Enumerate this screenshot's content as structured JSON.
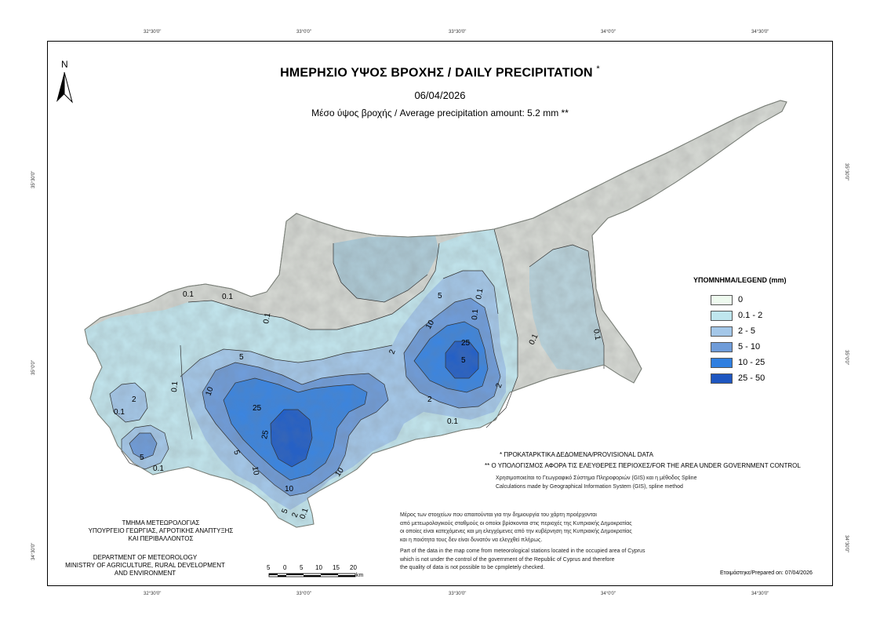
{
  "map": {
    "title": "ΗΜΕΡΗΣΙΟ ΥΨΟΣ ΒΡΟΧΗΣ / DAILY PRECIPITATION",
    "title_mark": "*",
    "date": "06/04/2026",
    "average_label": "Μέσο ύψος βροχής / Average precipitation amount: 5.2 mm **",
    "north_label": "N",
    "coords_top": [
      "32°30'0\"",
      "33°0'0\"",
      "33°30'0\"",
      "34°0'0\"",
      "34°30'0\""
    ],
    "coords_bottom": [
      "32°30'0\"",
      "33°0'0\"",
      "33°30'0\"",
      "34°0'0\"",
      "34°30'0\""
    ],
    "coords_left": [
      "35°30'0\"",
      "35°0'0\"",
      "34°30'0\""
    ],
    "coords_right": [
      "35°30'0\"",
      "35°0'0\"",
      "34°30'0\""
    ],
    "contour_labels": [
      "0.1",
      "0.1",
      "0.1",
      "0.1",
      "2",
      "5",
      "10",
      "25",
      "25",
      "10",
      "5",
      "2",
      "0.1",
      "0.1",
      "5",
      "10",
      "25",
      "0.1",
      "5",
      "2",
      "0.1",
      "0.1",
      "0.1",
      "5",
      "2",
      "0.1",
      "10",
      "10",
      "0.1",
      "2",
      "5"
    ],
    "colors": {
      "land": "#d5d8d3",
      "c0": "#eefaef",
      "c1": "#bfe6ee",
      "c2": "#a4c7e8",
      "c3": "#6f9cd9",
      "c4": "#2f7fe0",
      "c5": "#1e56c0"
    }
  },
  "legend": {
    "title": "ΥΠΟΜΝΗΜΑ/LEGEND (mm)",
    "items": [
      {
        "label": "0",
        "color": "#eefaef"
      },
      {
        "label": "0.1 - 2",
        "color": "#bfe6ee"
      },
      {
        "label": "2 - 5",
        "color": "#a4c7e8"
      },
      {
        "label": "5 - 10",
        "color": "#6f9cd9"
      },
      {
        "label": "10 - 25",
        "color": "#2f7fe0"
      },
      {
        "label": "25 - 50",
        "color": "#1e56c0"
      }
    ]
  },
  "notes": {
    "provisional": "* ΠΡΟΚΑΤΑΡΚΤΙΚΑ ΔΕΔΟΜΕΝΑ/PROVISIONAL DATA",
    "calculation": "** Ο ΥΠΟΛΟΓΙΣΜΟΣ ΑΦΟΡΑ ΤΙΣ ΕΛΕΥΘΕΡΕΣ ΠΕΡΙΟΧΕΣ/FOR THE AREA UNDER GOVERNMENT CONTROL",
    "gis_gr": "Χρησιμοποιείται το Γεωγραφικό Σύστημα Πληροφοριών (GIS) και η μέθοδος Spline",
    "gis_en": "Calculations made by Geographical Information System (GIS), spline method",
    "data_gr": [
      "Μέρος των στοιχείων που απαιτούνται για την δημιουργία του χάρτη προέρχονται",
      "από μετεωρολογικούς σταθμούς οι οποίοι βρίσκονται στις περιοχές της Κυπριακής Δημοκρατίας",
      "οι οποίες είναι κατεχόμενες και μη ελεγχόμενες από την κυβέρνηση της Κυπριακής Δημοκρατίας",
      "και η ποιότητα τους δεν είναι δυνατόν να ελεγχθεί πλήρως."
    ],
    "data_en": [
      "Part of the data in the map come from meteorological stations located in the occupied area of Cyprus",
      "which is not under the control of the government of the Republic of Cyprus and therefore",
      "the quality of data is not possible to be cpmpletely checked."
    ]
  },
  "department": {
    "gr": [
      "ΤΜΗΜΑ ΜΕΤΕΩΡΟΛΟΓΙΑΣ",
      "ΥΠΟΥΡΓΕΙΟ ΓΕΩΡΓΙΑΣ, ΑΓΡΟΤΙΚΗΣ ΑΝΑΠΤΥΞΗΣ",
      "ΚΑΙ ΠΕΡΙΒΑΛΛΟΝΤΟΣ"
    ],
    "en": [
      "DEPARTMENT OF METEOROLOGY",
      "MINISTRY OF AGRICULTURE, RURAL DEVELOPMENT",
      "AND ENVIRONMENT"
    ]
  },
  "scale": {
    "ticks": [
      "5",
      "0",
      "5",
      "10",
      "15",
      "20"
    ],
    "unit": "km"
  },
  "prepared": "Ετοιμάστηκε/Prepared on: 07/04/2026"
}
